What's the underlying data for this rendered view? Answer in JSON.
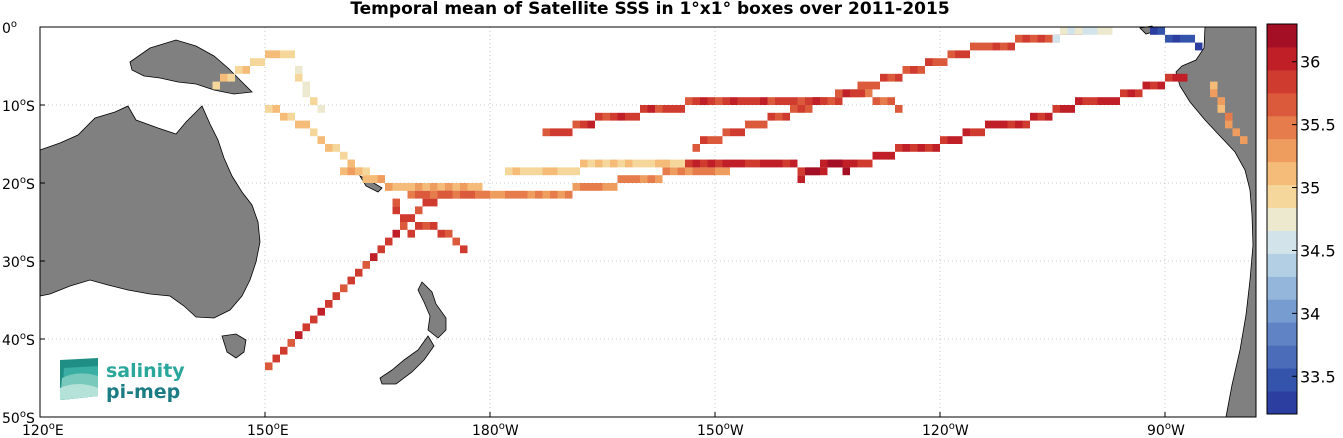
{
  "title": "Temporal mean of Satellite SSS in 1°x1° boxes over 2011-2015",
  "lon_ticks": [
    {
      "main": "120",
      "suffix": "E",
      "value": 120
    },
    {
      "main": "150",
      "suffix": "E",
      "value": 150
    },
    {
      "main": "180",
      "suffix": "W",
      "value": 180
    },
    {
      "main": "150",
      "suffix": "W",
      "value": 210
    },
    {
      "main": "120",
      "suffix": "W",
      "value": 240
    },
    {
      "main": "90",
      "suffix": "W",
      "value": 270
    }
  ],
  "lat_ticks": [
    {
      "main": "0",
      "suffix": "",
      "value": 0
    },
    {
      "main": "10",
      "suffix": "S",
      "value": -10
    },
    {
      "main": "20",
      "suffix": "S",
      "value": -20
    },
    {
      "main": "30",
      "suffix": "S",
      "value": -30
    },
    {
      "main": "40",
      "suffix": "S",
      "value": -40
    },
    {
      "main": "50",
      "suffix": "S",
      "value": -50
    }
  ],
  "colorbar": {
    "min": 33.2,
    "max": 36.3,
    "ticks": [
      {
        "label": "33.5",
        "value": 33.5
      },
      {
        "label": "34",
        "value": 34.0
      },
      {
        "label": "34.5",
        "value": 34.5
      },
      {
        "label": "35",
        "value": 35.0
      },
      {
        "label": "35.5",
        "value": 35.5
      },
      {
        "label": "36",
        "value": 36.0
      }
    ],
    "colors": [
      "#2c3fa0",
      "#3454ac",
      "#4a6cb9",
      "#5f83c4",
      "#779ccf",
      "#93b6da",
      "#b3cfe3",
      "#d2e4ea",
      "#ece9cf",
      "#f6d79b",
      "#f4bc78",
      "#ef9c5f",
      "#e67b4c",
      "#dc5a3c",
      "#d03b30",
      "#c01f28",
      "#a50f25"
    ]
  },
  "logo": {
    "line1": "salinity",
    "line2": "pi-mep"
  },
  "colors": {
    "land": "#808080",
    "grid": "#c8c8c8"
  },
  "chart_data": {
    "type": "map",
    "variable": "Temporal mean of Satellite SSS in 1°x1° boxes over 2011-2015",
    "lon_range": [
      120,
      282
    ],
    "lat_range": [
      -50,
      0
    ],
    "tracks": [
      {
        "points": [
          [
            143,
            -7
          ],
          [
            145,
            -6
          ],
          [
            147,
            -5
          ],
          [
            149,
            -4
          ],
          [
            151,
            -3
          ],
          [
            153,
            -3
          ]
        ],
        "value": 35.0
      },
      {
        "points": [
          [
            150,
            -10
          ],
          [
            152,
            -11
          ],
          [
            154,
            -12
          ],
          [
            156,
            -13
          ],
          [
            158,
            -15
          ],
          [
            160,
            -16
          ],
          [
            162,
            -18
          ],
          [
            164,
            -19
          ],
          [
            166,
            -20
          ]
        ],
        "value": 35.05
      },
      {
        "points": [
          [
            154,
            -5
          ],
          [
            155,
            -7
          ],
          [
            156,
            -9
          ],
          [
            157,
            -10
          ]
        ],
        "value": 34.8
      },
      {
        "points": [
          [
            160,
            -18
          ],
          [
            163,
            -19
          ],
          [
            166,
            -20
          ],
          [
            169,
            -20
          ],
          [
            172,
            -20
          ],
          [
            175,
            -20
          ],
          [
            178,
            -20
          ]
        ],
        "value": 35.15
      },
      {
        "points": [
          [
            172,
            -21
          ],
          [
            175,
            -21
          ],
          [
            178,
            -21
          ],
          [
            181,
            -21
          ],
          [
            184,
            -21
          ],
          [
            187,
            -21
          ],
          [
            190,
            -21
          ],
          [
            193,
            -20
          ],
          [
            196,
            -20
          ],
          [
            199,
            -19
          ],
          [
            202,
            -19
          ],
          [
            205,
            -18
          ],
          [
            208,
            -18
          ],
          [
            211,
            -18
          ]
        ],
        "value": 35.4
      },
      {
        "points": [
          [
            182,
            -18
          ],
          [
            185,
            -18
          ],
          [
            188,
            -18
          ],
          [
            191,
            -18
          ],
          [
            194,
            -17
          ],
          [
            197,
            -17
          ],
          [
            200,
            -17
          ],
          [
            203,
            -17
          ],
          [
            206,
            -17
          ],
          [
            209,
            -17
          ]
        ],
        "value": 35.0
      },
      {
        "points": [
          [
            150,
            -43
          ],
          [
            152,
            -41
          ],
          [
            154,
            -39
          ],
          [
            156,
            -37
          ],
          [
            158,
            -35
          ],
          [
            160,
            -33
          ],
          [
            162,
            -31
          ],
          [
            164,
            -29
          ],
          [
            166,
            -27
          ],
          [
            168,
            -25
          ],
          [
            170,
            -23
          ],
          [
            172,
            -22
          ],
          [
            174,
            -21
          ]
        ],
        "value": 35.85
      },
      {
        "points": [
          [
            167,
            -22
          ],
          [
            168,
            -24
          ],
          [
            169,
            -26
          ],
          [
            171,
            -25
          ],
          [
            173,
            -26
          ],
          [
            175,
            -27
          ],
          [
            176,
            -28
          ]
        ],
        "value": 35.8
      },
      {
        "points": [
          [
            169,
            -21
          ],
          [
            171,
            -21
          ],
          [
            173,
            -21
          ],
          [
            175,
            -21
          ],
          [
            177,
            -21
          ],
          [
            179,
            -21
          ]
        ],
        "value": 35.6
      },
      {
        "points": [
          [
            206,
            -17
          ],
          [
            209,
            -17
          ],
          [
            212,
            -17
          ],
          [
            215,
            -17
          ],
          [
            218,
            -17
          ],
          [
            221,
            -18
          ],
          [
            224,
            -18
          ],
          [
            227,
            -17
          ],
          [
            230,
            -17
          ],
          [
            233,
            -16
          ],
          [
            236,
            -15
          ],
          [
            239,
            -15
          ],
          [
            242,
            -14
          ],
          [
            245,
            -13
          ],
          [
            248,
            -12
          ],
          [
            251,
            -12
          ],
          [
            254,
            -11
          ],
          [
            257,
            -10
          ],
          [
            260,
            -9
          ],
          [
            263,
            -9
          ],
          [
            266,
            -8
          ],
          [
            269,
            -7
          ],
          [
            272,
            -6
          ]
        ],
        "value": 35.95
      },
      {
        "points": [
          [
            221,
            -19
          ],
          [
            223,
            -18
          ],
          [
            225,
            -17
          ],
          [
            227,
            -18
          ]
        ],
        "value": 36.2
      },
      {
        "points": [
          [
            207,
            -15
          ],
          [
            210,
            -14
          ],
          [
            213,
            -13
          ],
          [
            216,
            -12
          ],
          [
            219,
            -11
          ],
          [
            222,
            -10
          ],
          [
            225,
            -9
          ],
          [
            228,
            -8
          ],
          [
            231,
            -7
          ],
          [
            234,
            -6
          ],
          [
            237,
            -5
          ],
          [
            240,
            -4
          ],
          [
            243,
            -3
          ],
          [
            246,
            -2
          ],
          [
            249,
            -2
          ],
          [
            252,
            -1
          ],
          [
            255,
            -1
          ],
          [
            258,
            0
          ]
        ],
        "value": 35.7
      },
      {
        "points": [
          [
            228,
            -8
          ],
          [
            231,
            -9
          ],
          [
            234,
            -10
          ]
        ],
        "value": 35.6
      },
      {
        "points": [
          [
            187,
            -13
          ],
          [
            190,
            -13
          ],
          [
            193,
            -12
          ],
          [
            196,
            -11
          ],
          [
            199,
            -11
          ],
          [
            202,
            -10
          ],
          [
            205,
            -10
          ],
          [
            208,
            -9
          ],
          [
            211,
            -9
          ],
          [
            214,
            -9
          ],
          [
            217,
            -9
          ],
          [
            220,
            -9
          ],
          [
            223,
            -9
          ],
          [
            226,
            -9
          ],
          [
            229,
            -8
          ]
        ],
        "value": 35.85
      },
      {
        "points": [
          [
            255,
            -1
          ],
          [
            259,
            0
          ],
          [
            262,
            0
          ]
        ],
        "value": 34.6
      },
      {
        "points": [
          [
            268,
            0
          ],
          [
            270,
            -1
          ],
          [
            272,
            -1
          ],
          [
            274,
            -2
          ]
        ],
        "value": 33.4
      },
      {
        "points": [
          [
            276,
            -7
          ],
          [
            277,
            -9
          ],
          [
            278,
            -11
          ],
          [
            279,
            -13
          ],
          [
            280,
            -14
          ]
        ],
        "value": 35.3
      }
    ]
  }
}
